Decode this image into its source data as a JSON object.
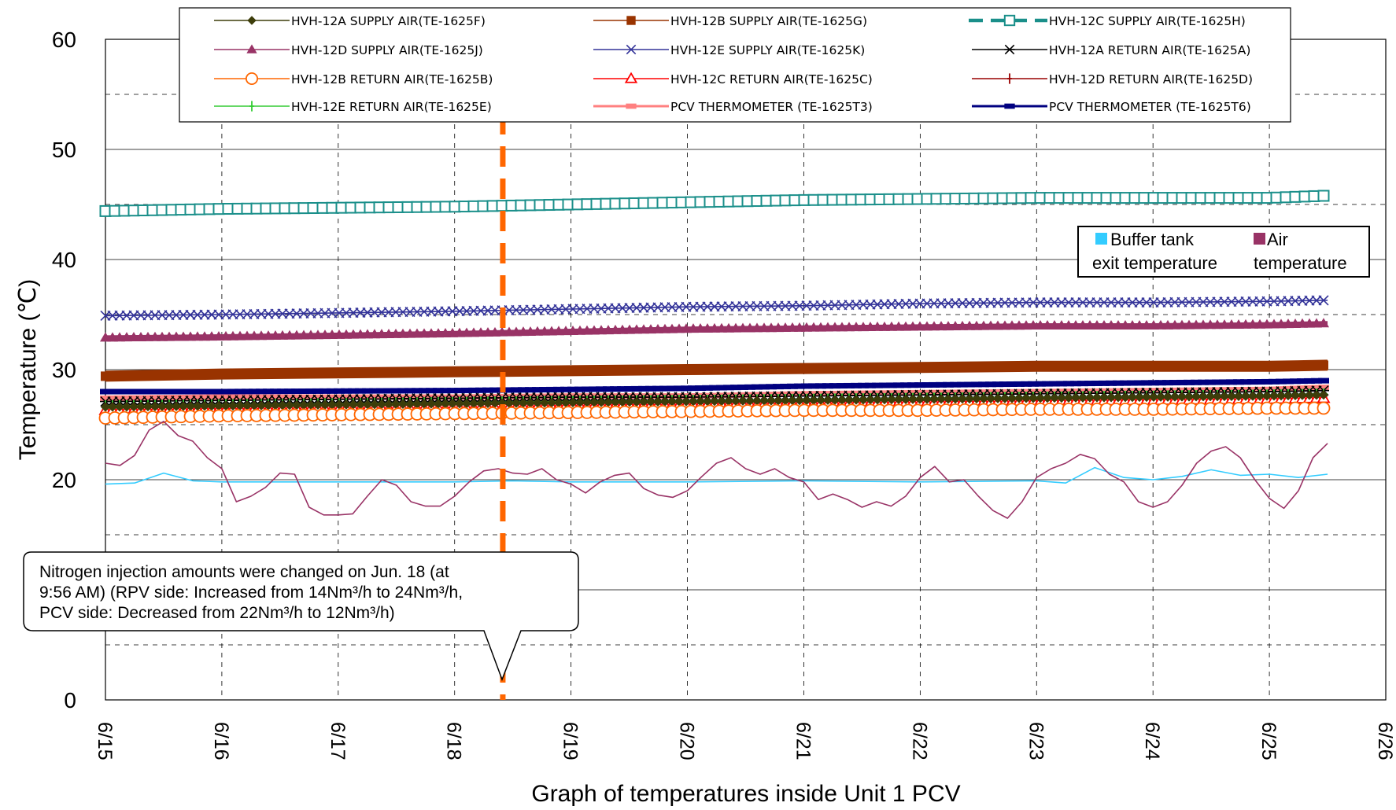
{
  "chart_data": {
    "type": "line",
    "title": "",
    "xlabel": "Graph of temperatures inside Unit 1 PCV",
    "ylabel": "Temperature (℃)",
    "ylim": [
      0,
      60
    ],
    "yticks": [
      "0",
      "10",
      "20",
      "30",
      "40",
      "50",
      "60"
    ],
    "xlim": [
      "6/15",
      "6/26"
    ],
    "xticks": [
      "6/15",
      "6/16",
      "6/17",
      "6/18",
      "6/19",
      "6/20",
      "6/21",
      "6/22",
      "6/23",
      "6/24",
      "6/25",
      "6/26"
    ],
    "grid": true,
    "series_legend": [
      {
        "name": "HVH-12A SUPPLY AIR(TE-1625F)",
        "color": "#3d3d0a",
        "marker": "diamond"
      },
      {
        "name": "HVH-12B SUPPLY AIR(TE-1625G)",
        "color": "#993300",
        "marker": "square"
      },
      {
        "name": "HVH-12C SUPPLY AIR(TE-1625H)",
        "color": "#1a8f8a",
        "marker": "open-square"
      },
      {
        "name": "HVH-12D SUPPLY AIR(TE-1625J)",
        "color": "#993366",
        "marker": "triangle"
      },
      {
        "name": "HVH-12E SUPPLY AIR(TE-1625K)",
        "color": "#333399",
        "marker": "x"
      },
      {
        "name": "HVH-12A RETURN AIR(TE-1625A)",
        "color": "#000000",
        "marker": "star"
      },
      {
        "name": "HVH-12B RETURN AIR(TE-1625B)",
        "color": "#ff6600",
        "marker": "open-circle"
      },
      {
        "name": "HVH-12C RETURN AIR(TE-1625C)",
        "color": "#ff0000",
        "marker": "open-triangle"
      },
      {
        "name": "HVH-12D RETURN AIR(TE-1625D)",
        "color": "#990000",
        "marker": "plus"
      },
      {
        "name": "HVH-12E RETURN AIR(TE-1625E)",
        "color": "#33cc33",
        "marker": "plus"
      },
      {
        "name": "PCV THERMOMETER (TE-1625T3)",
        "color": "#ff8080",
        "marker": "dash"
      },
      {
        "name": "PCV THERMOMETER (TE-1625T6)",
        "color": "#000080",
        "marker": "dash"
      }
    ],
    "series": [
      {
        "name": "HVH-12C SUPPLY AIR(TE-1625H)",
        "x": [
          "6/15",
          "6/16",
          "6/18",
          "6/19",
          "6/20",
          "6/21",
          "6/22",
          "6/23",
          "6/24",
          "6/25",
          "6/25 12:00"
        ],
        "values": [
          44.4,
          44.6,
          44.8,
          45.0,
          45.2,
          45.4,
          45.5,
          45.6,
          45.6,
          45.6,
          45.8
        ]
      },
      {
        "name": "HVH-12E SUPPLY AIR(TE-1625K)",
        "x": [
          "6/15",
          "6/16",
          "6/18",
          "6/19",
          "6/20",
          "6/21",
          "6/22",
          "6/23",
          "6/24",
          "6/25",
          "6/25 12:00"
        ],
        "values": [
          34.9,
          35.0,
          35.3,
          35.5,
          35.7,
          35.8,
          36.0,
          36.1,
          36.1,
          36.2,
          36.3
        ]
      },
      {
        "name": "HVH-12D SUPPLY AIR(TE-1625J)",
        "x": [
          "6/15",
          "6/16",
          "6/18",
          "6/19",
          "6/20",
          "6/21",
          "6/22",
          "6/23",
          "6/24",
          "6/25",
          "6/25 12:00"
        ],
        "values": [
          32.9,
          33.0,
          33.3,
          33.5,
          33.7,
          33.8,
          33.9,
          34.0,
          34.0,
          34.1,
          34.2
        ]
      },
      {
        "name": "HVH-12B SUPPLY AIR(TE-1625G)",
        "x": [
          "6/15",
          "6/16",
          "6/18",
          "6/19",
          "6/20",
          "6/21",
          "6/22",
          "6/23",
          "6/24",
          "6/25",
          "6/25 12:00"
        ],
        "values": [
          29.4,
          29.6,
          29.8,
          29.9,
          30.0,
          30.1,
          30.2,
          30.3,
          30.3,
          30.3,
          30.4
        ]
      },
      {
        "name": "PCV THERMOMETER (TE-1625T6)",
        "x": [
          "6/15",
          "6/16",
          "6/18",
          "6/19",
          "6/20",
          "6/21",
          "6/22",
          "6/23",
          "6/24",
          "6/25",
          "6/25 12:00"
        ],
        "values": [
          28.0,
          28.0,
          28.1,
          28.2,
          28.3,
          28.5,
          28.6,
          28.7,
          28.8,
          28.9,
          29.0
        ]
      },
      {
        "name": "PCV THERMOMETER (TE-1625T3)",
        "x": [
          "6/15",
          "6/16",
          "6/18",
          "6/19",
          "6/20",
          "6/21",
          "6/22",
          "6/23",
          "6/24",
          "6/25",
          "6/25 12:00"
        ],
        "values": [
          27.4,
          27.5,
          27.5,
          27.6,
          27.6,
          27.8,
          27.9,
          28.0,
          28.1,
          28.2,
          28.4
        ]
      },
      {
        "name": "HVH-12A RETURN AIR(TE-1625A)",
        "x": [
          "6/15",
          "6/16",
          "6/18",
          "6/19",
          "6/20",
          "6/21",
          "6/22",
          "6/23",
          "6/24",
          "6/25",
          "6/25 12:00"
        ],
        "values": [
          27.1,
          27.2,
          27.4,
          27.5,
          27.5,
          27.6,
          27.7,
          27.8,
          27.9,
          28.0,
          28.1
        ]
      },
      {
        "name": "HVH-12E RETURN AIR(TE-1625E)",
        "x": [
          "6/15",
          "6/16",
          "6/18",
          "6/19",
          "6/20",
          "6/21",
          "6/22",
          "6/23",
          "6/24",
          "6/25",
          "6/25 12:00"
        ],
        "values": [
          26.7,
          26.8,
          27.0,
          27.1,
          27.2,
          27.3,
          27.4,
          27.5,
          27.6,
          27.7,
          27.8
        ]
      },
      {
        "name": "HVH-12D RETURN AIR(TE-1625D)",
        "x": [
          "6/15",
          "6/16",
          "6/18",
          "6/19",
          "6/20",
          "6/21",
          "6/22",
          "6/23",
          "6/24",
          "6/25",
          "6/25 12:00"
        ],
        "values": [
          26.5,
          26.6,
          26.8,
          26.9,
          27.0,
          27.1,
          27.2,
          27.3,
          27.4,
          27.5,
          27.6
        ]
      },
      {
        "name": "HVH-12C RETURN AIR(TE-1625C)",
        "x": [
          "6/15",
          "6/16",
          "6/18",
          "6/19",
          "6/20",
          "6/21",
          "6/22",
          "6/23",
          "6/24",
          "6/25",
          "6/25 12:00"
        ],
        "values": [
          26.3,
          26.4,
          26.5,
          26.7,
          26.8,
          26.9,
          27.0,
          27.1,
          27.2,
          27.3,
          27.4
        ]
      },
      {
        "name": "HVH-12A SUPPLY AIR(TE-1625F)",
        "x": [
          "6/15",
          "6/16",
          "6/18",
          "6/19",
          "6/20",
          "6/21",
          "6/22",
          "6/23",
          "6/24",
          "6/25",
          "6/25 12:00"
        ],
        "values": [
          26.6,
          26.7,
          26.9,
          27.0,
          27.1,
          27.2,
          27.3,
          27.4,
          27.5,
          27.6,
          27.7
        ]
      },
      {
        "name": "HVH-12B RETURN AIR(TE-1625B)",
        "x": [
          "6/15",
          "6/16",
          "6/18",
          "6/19",
          "6/20",
          "6/21",
          "6/22",
          "6/23",
          "6/24",
          "6/25",
          "6/25 12:00"
        ],
        "values": [
          25.6,
          25.8,
          26.0,
          26.1,
          26.2,
          26.3,
          26.3,
          26.4,
          26.4,
          26.5,
          26.5
        ]
      },
      {
        "name": "Buffer tank exit temperature",
        "x": [
          "6/15",
          "6/15 06:00",
          "6/15 12:00",
          "6/15 18:00",
          "6/16",
          "6/17",
          "6/18",
          "6/18 12:00",
          "6/19",
          "6/20",
          "6/21",
          "6/22",
          "6/23",
          "6/23 06:00",
          "6/23 12:00",
          "6/23 18:00",
          "6/24",
          "6/24 06:00",
          "6/24 12:00",
          "6/24 18:00",
          "6/25",
          "6/25 06:00",
          "6/25 12:00"
        ],
        "values": [
          19.6,
          19.7,
          20.6,
          19.9,
          19.8,
          19.8,
          19.8,
          19.9,
          19.8,
          19.8,
          19.9,
          19.8,
          19.9,
          19.7,
          21.1,
          20.2,
          20.0,
          20.3,
          20.9,
          20.4,
          20.5,
          20.2,
          20.5
        ]
      },
      {
        "name": "Air temperature",
        "x": [
          "6/15",
          "6/15 03:00",
          "6/15 06:00",
          "6/15 09:00",
          "6/15 12:00",
          "6/15 15:00",
          "6/15 18:00",
          "6/15 21:00",
          "6/16",
          "6/16 03:00",
          "6/16 06:00",
          "6/16 09:00",
          "6/16 12:00",
          "6/16 15:00",
          "6/16 18:00",
          "6/16 21:00",
          "6/17",
          "6/17 03:00",
          "6/17 06:00",
          "6/17 09:00",
          "6/17 12:00",
          "6/17 15:00",
          "6/17 18:00",
          "6/17 21:00",
          "6/18",
          "6/18 03:00",
          "6/18 06:00",
          "6/18 09:00",
          "6/18 12:00",
          "6/18 15:00",
          "6/18 18:00",
          "6/18 21:00",
          "6/19",
          "6/19 03:00",
          "6/19 06:00",
          "6/19 09:00",
          "6/19 12:00",
          "6/19 15:00",
          "6/19 18:00",
          "6/19 21:00",
          "6/20",
          "6/20 03:00",
          "6/20 06:00",
          "6/20 09:00",
          "6/20 12:00",
          "6/20 15:00",
          "6/20 18:00",
          "6/20 21:00",
          "6/21",
          "6/21 03:00",
          "6/21 06:00",
          "6/21 09:00",
          "6/21 12:00",
          "6/21 15:00",
          "6/21 18:00",
          "6/21 21:00",
          "6/22",
          "6/22 03:00",
          "6/22 06:00",
          "6/22 09:00",
          "6/22 12:00",
          "6/22 15:00",
          "6/22 18:00",
          "6/22 21:00",
          "6/23",
          "6/23 03:00",
          "6/23 06:00",
          "6/23 09:00",
          "6/23 12:00",
          "6/23 15:00",
          "6/23 18:00",
          "6/23 21:00",
          "6/24",
          "6/24 03:00",
          "6/24 06:00",
          "6/24 09:00",
          "6/24 12:00",
          "6/24 15:00",
          "6/24 18:00",
          "6/24 21:00",
          "6/25",
          "6/25 03:00",
          "6/25 06:00",
          "6/25 09:00",
          "6/25 12:00"
        ],
        "values": [
          21.5,
          21.3,
          22.2,
          24.5,
          25.3,
          24.0,
          23.5,
          22.0,
          21.0,
          18.0,
          18.5,
          19.3,
          20.6,
          20.5,
          17.5,
          16.8,
          16.8,
          16.9,
          18.5,
          20.0,
          19.5,
          18.0,
          17.6,
          17.6,
          18.5,
          19.8,
          20.8,
          21.0,
          20.6,
          20.5,
          21.0,
          20.0,
          19.6,
          18.8,
          19.8,
          20.4,
          20.6,
          19.2,
          18.6,
          18.4,
          19.0,
          20.3,
          21.5,
          22.0,
          21.0,
          20.5,
          21.0,
          20.2,
          19.8,
          18.2,
          18.7,
          18.2,
          17.5,
          18.0,
          17.6,
          18.5,
          20.2,
          21.2,
          19.8,
          20.0,
          18.5,
          17.2,
          16.5,
          18.0,
          20.2,
          21.0,
          21.5,
          22.3,
          21.9,
          20.5,
          19.8,
          18.0,
          17.5,
          18.0,
          19.5,
          21.5,
          22.6,
          23.0,
          22.0,
          20.0,
          18.3,
          17.4,
          19.0,
          22.0,
          23.3
        ]
      }
    ],
    "inset_legend": [
      {
        "name": "Buffer tank exit temperature",
        "label_lines": [
          "Buffer tank",
          "exit temperature"
        ],
        "color": "#33ccff"
      },
      {
        "name": "Air temperature",
        "label_lines": [
          "Air",
          "temperature"
        ],
        "color": "#993366"
      }
    ],
    "annotation": {
      "lines": [
        "Nitrogen injection amounts were changed on Jun. 18 (at",
        "9:56 AM) (RPV side: Increased from 14Nm³/h to 24Nm³/h,",
        "PCV side: Decreased from 22Nm³/h to 12Nm³/h)"
      ],
      "marker_x": "6/18 09:56",
      "marker_color": "#ff6600"
    }
  }
}
